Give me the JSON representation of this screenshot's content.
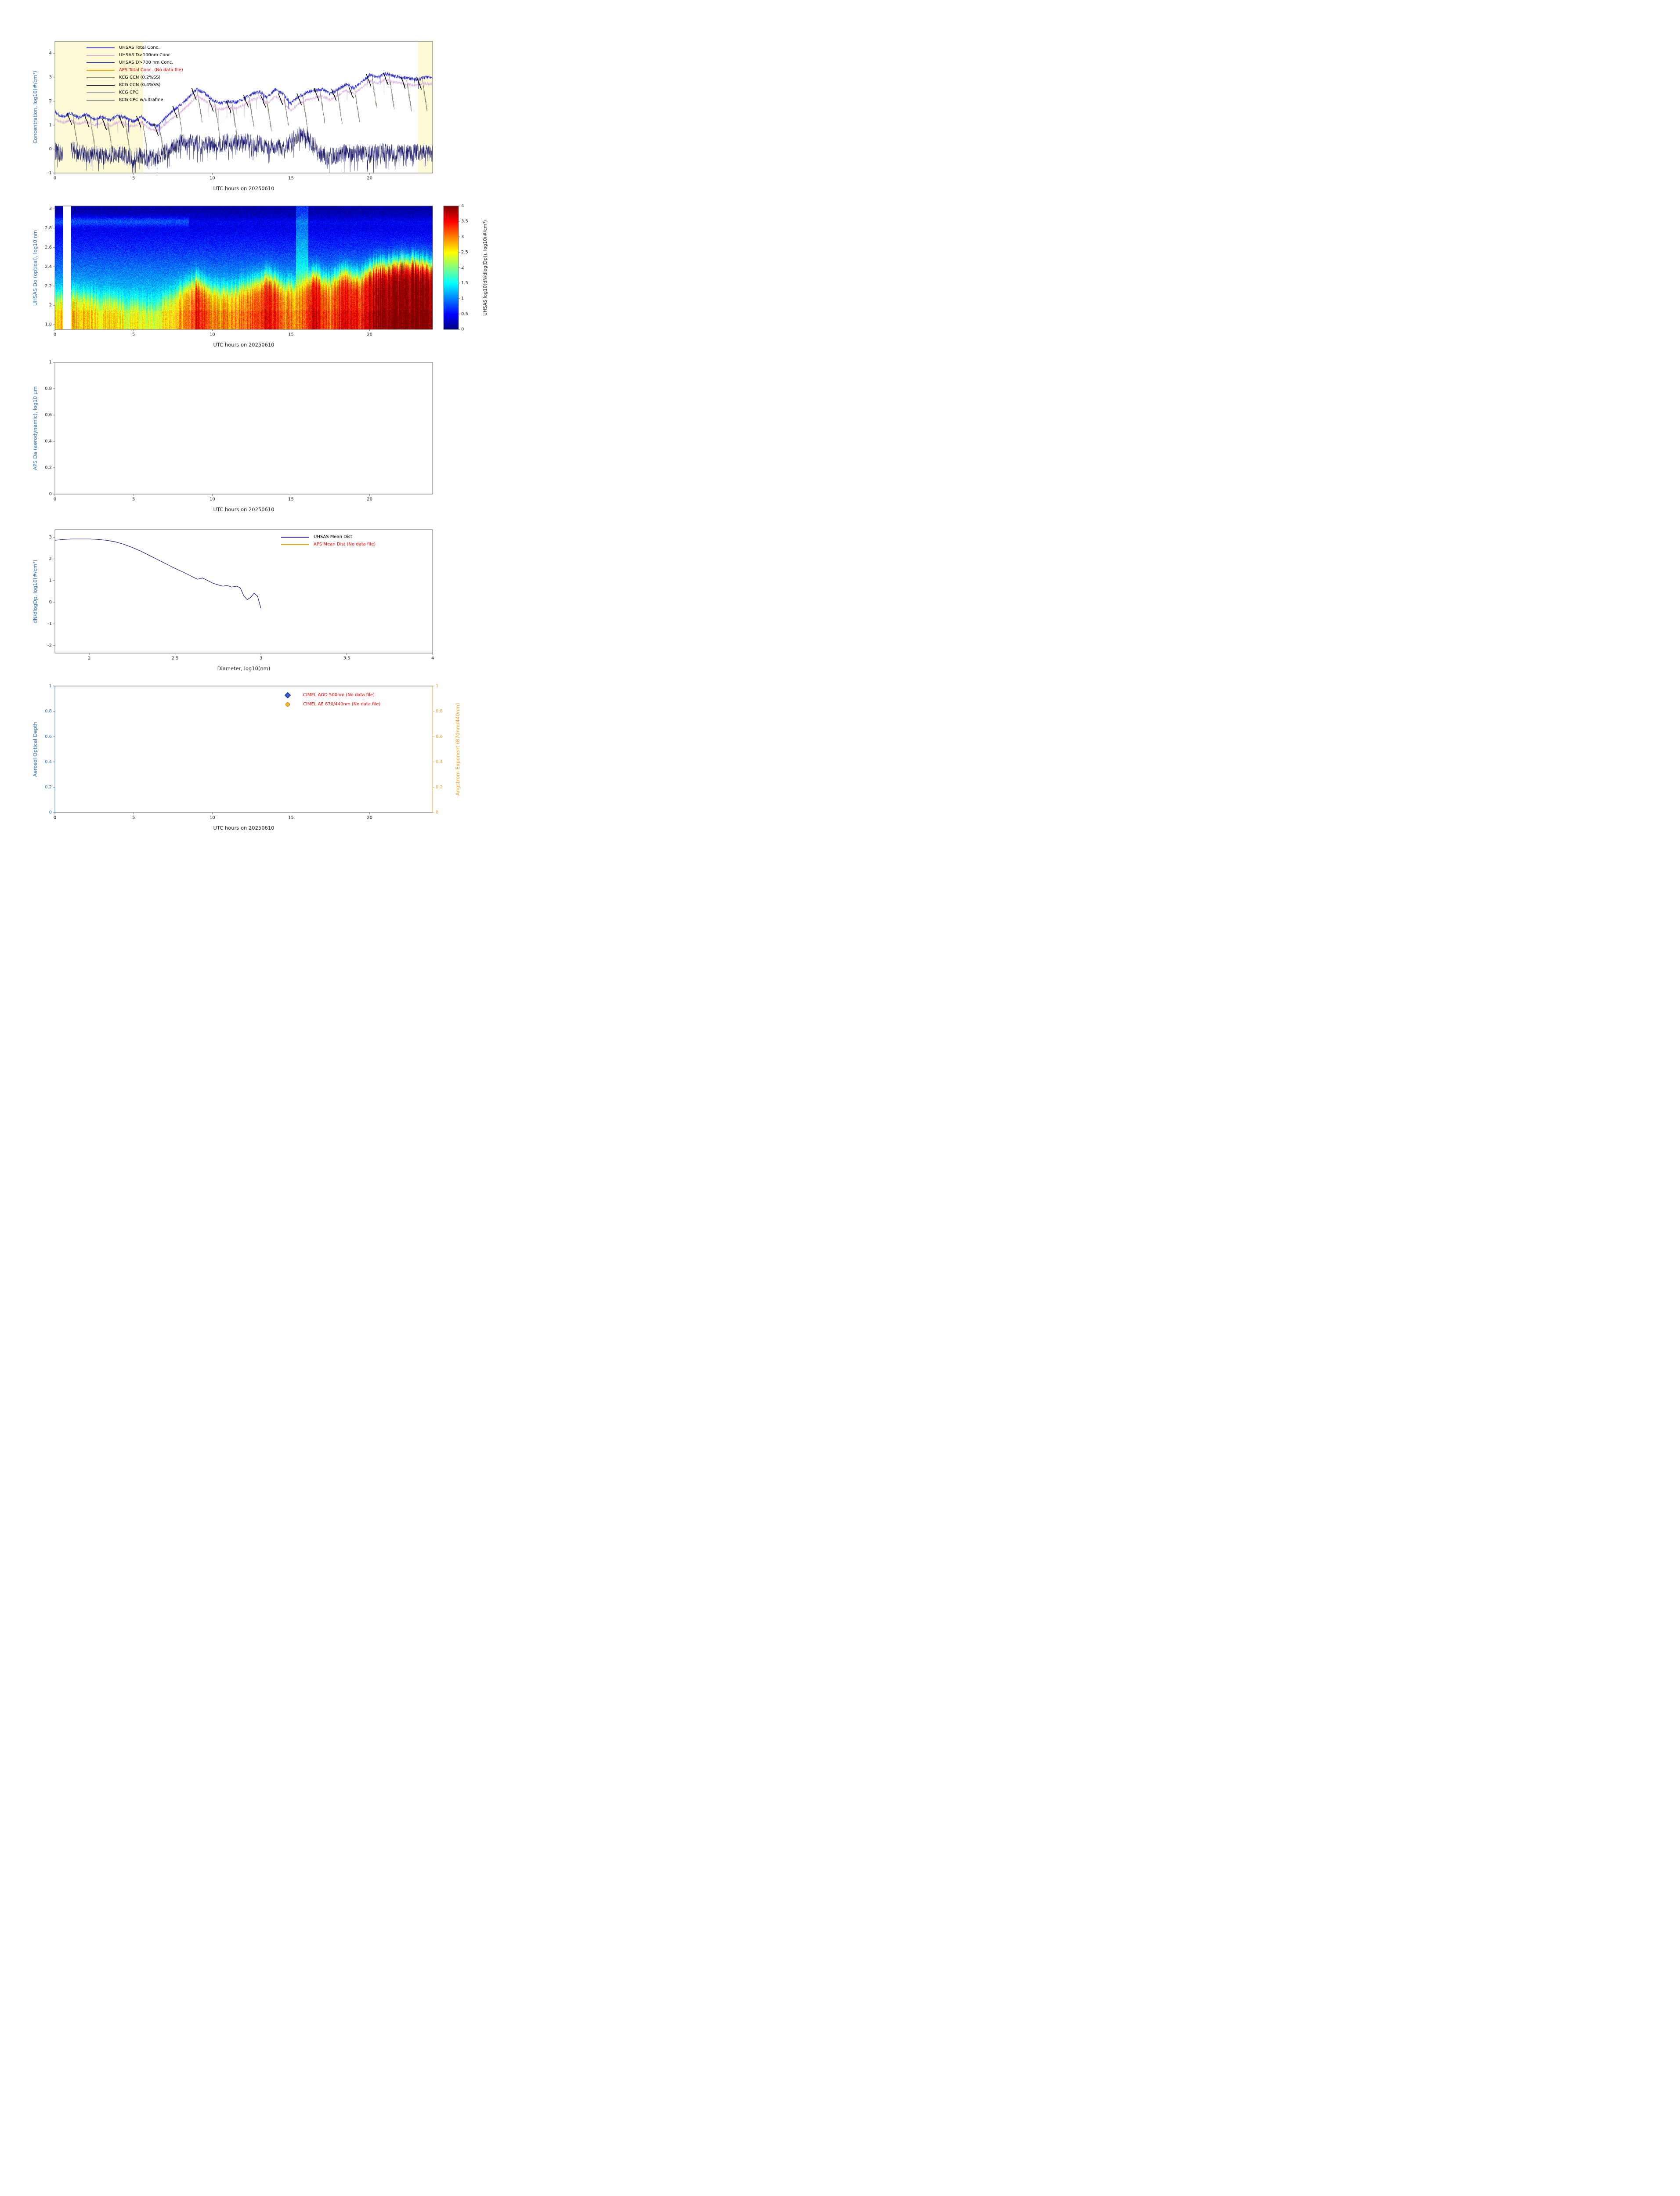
{
  "colors": {
    "axis_blue": "#3273be",
    "axis_orange": "#f0a030",
    "tick_label": "#262626",
    "spine": "#636363",
    "nodata_red": "#ff0000",
    "background": "#ffffff",
    "shade_yellow": "#fcf9d4"
  },
  "chart_data_note": "charts[] below is the chart_data: all series values read from the plotted figure",
  "charts": [
    {
      "id": "concentration_timeseries",
      "type": "line",
      "ylabel": "Concentration, log10(#/cm³)",
      "xlabel": "UTC hours on 20250610",
      "xlim": [
        0,
        24
      ],
      "ylim": [
        -1,
        4.5
      ],
      "xticks": [
        0,
        5,
        10,
        15,
        20
      ],
      "yticks": [
        -1,
        0,
        1,
        2,
        3,
        4
      ],
      "shaded_spans": [
        [
          0,
          5.62
        ],
        [
          23.08,
          24
        ]
      ],
      "legend": [
        {
          "label": "UHSAS Total Conc.",
          "color": "#2424cf",
          "text": "#000000"
        },
        {
          "label": "UHSAS D>100nm Conc.",
          "color": "#ddb3dd",
          "text": "#000000"
        },
        {
          "label": "UHSAS D>700 nm Conc.",
          "color": "#191970",
          "text": "#000000"
        },
        {
          "label": "APS Total Conc. (No data file)",
          "color": "#ffa500",
          "text": "#ff0000"
        },
        {
          "label": "KCG CCN (0.2%SS)",
          "color": "#8b8b7a",
          "text": "#000000"
        },
        {
          "label": "KCG CCN (0.4%SS)",
          "color": "#000000",
          "text": "#000000"
        },
        {
          "label": "KCG CPC",
          "color": "#aab0c0",
          "text": "#000000"
        },
        {
          "label": "KCG CPC w/ultrafine",
          "color": "#6f7585",
          "text": "#000000"
        }
      ],
      "series": [
        {
          "name": "UHSAS Total Conc.",
          "color": "#2424cf",
          "noise": 0.07,
          "x": [
            0,
            0.5,
            1,
            1.5,
            2,
            2.5,
            3,
            3.5,
            4,
            4.5,
            5,
            5.5,
            6,
            6.5,
            7,
            7.5,
            8,
            8.5,
            9,
            9.5,
            10,
            10.5,
            11,
            11.5,
            12,
            12.5,
            13,
            13.5,
            14,
            14.5,
            15,
            15.5,
            16,
            16.5,
            17,
            17.5,
            18,
            18.5,
            19,
            19.5,
            20,
            20.5,
            21,
            21.5,
            22,
            22.5,
            23,
            23.5,
            24
          ],
          "y": [
            1.55,
            1.35,
            1.5,
            1.3,
            1.45,
            1.25,
            1.35,
            1.2,
            1.4,
            1.3,
            1.15,
            1.35,
            1.05,
            0.95,
            1.3,
            1.6,
            1.85,
            2.15,
            2.5,
            2.35,
            2.05,
            1.9,
            2.0,
            1.95,
            2.1,
            2.3,
            2.4,
            2.15,
            2.5,
            2.3,
            1.9,
            2.2,
            2.35,
            2.45,
            2.5,
            2.3,
            2.5,
            2.7,
            2.55,
            2.8,
            3.1,
            3.0,
            3.15,
            3.05,
            3.0,
            2.95,
            2.9,
            3.0,
            3.0
          ]
        },
        {
          "name": "UHSAS D>100nm Conc.",
          "color": "#ddb3dd",
          "noise": 0.06,
          "x": [
            0,
            0.5,
            1,
            1.5,
            2,
            2.5,
            3,
            3.5,
            4,
            4.5,
            5,
            5.5,
            6,
            6.5,
            7,
            7.5,
            8,
            8.5,
            9,
            9.5,
            10,
            10.5,
            11,
            11.5,
            12,
            12.5,
            13,
            13.5,
            14,
            14.5,
            15,
            15.5,
            16,
            16.5,
            17,
            17.5,
            18,
            18.5,
            19,
            19.5,
            20,
            20.5,
            21,
            21.5,
            22,
            22.5,
            23,
            23.5,
            24
          ],
          "y": [
            1.25,
            1.1,
            1.2,
            1.05,
            1.15,
            1.0,
            1.1,
            0.95,
            1.15,
            1.05,
            0.95,
            1.1,
            0.85,
            0.75,
            1.05,
            1.3,
            1.55,
            1.85,
            2.2,
            2.05,
            1.8,
            1.65,
            1.75,
            1.7,
            1.85,
            2.05,
            2.15,
            1.9,
            2.2,
            2.0,
            1.6,
            1.9,
            2.05,
            2.15,
            2.2,
            2.05,
            2.25,
            2.45,
            2.3,
            2.55,
            2.85,
            2.75,
            2.9,
            2.8,
            2.75,
            2.7,
            2.65,
            2.75,
            2.7
          ]
        },
        {
          "name": "UHSAS D>700 nm Conc.",
          "color": "#191970",
          "noise": 0.38,
          "gaps": [
            [
              0.52,
              1.02
            ]
          ],
          "x": [
            0,
            0.5,
            1,
            1.5,
            2,
            2.5,
            3,
            3.5,
            4,
            4.5,
            5,
            5.5,
            6,
            6.5,
            7,
            7.5,
            8,
            8.5,
            9,
            9.5,
            10,
            10.5,
            11,
            11.5,
            12,
            12.5,
            13,
            13.5,
            14,
            14.5,
            15,
            15.5,
            16,
            16.5,
            17,
            17.5,
            18,
            18.5,
            19,
            19.5,
            20,
            20.5,
            21,
            21.5,
            22,
            22.5,
            23,
            23.5,
            24
          ],
          "y": [
            -0.1,
            -0.2,
            0.0,
            -0.1,
            -0.25,
            -0.2,
            -0.3,
            -0.25,
            -0.2,
            -0.3,
            -0.35,
            -0.25,
            -0.4,
            -0.35,
            -0.1,
            0.1,
            0.25,
            0.3,
            0.3,
            0.2,
            0.15,
            0.2,
            0.3,
            0.25,
            0.3,
            0.25,
            0.2,
            0.1,
            0.15,
            0.0,
            0.3,
            0.65,
            0.55,
            0.1,
            -0.25,
            -0.3,
            -0.25,
            -0.15,
            -0.2,
            -0.1,
            -0.2,
            -0.15,
            -0.1,
            -0.2,
            -0.15,
            -0.2,
            -0.1,
            -0.15,
            -0.2
          ]
        }
      ],
      "kcg": {
        "event_times": [
          1.1,
          2.2,
          3.3,
          4.4,
          5.5,
          6.6,
          7.8,
          9.0,
          10.1,
          11.2,
          12.3,
          13.4,
          14.5,
          15.7,
          16.8,
          17.9,
          19.0,
          20.1,
          21.2,
          22.3,
          23.3
        ],
        "ccn02_color": "#8b8b7a",
        "ccn04_color": "#000000",
        "drop_depth": 1.25
      }
    },
    {
      "id": "uhsas_size_dist_heatmap",
      "type": "heatmap",
      "ylabel": "UHSAS Do (optical), log10 nm",
      "xlabel": "UTC hours on 20250610",
      "xlim": [
        0,
        24
      ],
      "ylim": [
        1.75,
        3.03
      ],
      "xticks": [
        0,
        5,
        10,
        15,
        20
      ],
      "yticks": [
        1.8,
        2,
        2.2,
        2.4,
        2.6,
        2.8,
        3
      ],
      "colorbar": {
        "label": "UHSAS log10(dN/dlog(Dp)), log10(#/cm³)",
        "ticks": [
          0,
          0.5,
          1,
          1.5,
          2,
          2.5,
          3,
          3.5,
          4
        ],
        "range": [
          0,
          4
        ],
        "colormap": "jet"
      },
      "gaps": [
        [
          0.52,
          1.02
        ]
      ],
      "columns": {
        "t": [
          0,
          0.5,
          1,
          1.5,
          2,
          2.5,
          3,
          3.5,
          4,
          4.5,
          5,
          5.5,
          6,
          6.5,
          7,
          7.5,
          8,
          8.5,
          9,
          9.5,
          10,
          10.5,
          11,
          11.5,
          12,
          12.5,
          13,
          13.5,
          14,
          14.5,
          15,
          15.5,
          16,
          16.5,
          17,
          17.5,
          18,
          18.5,
          19,
          19.5,
          20,
          20.5,
          21,
          21.5,
          22,
          22.5,
          23,
          23.5,
          24
        ],
        "surface_value": [
          2.6,
          2.6,
          2.7,
          2.65,
          2.6,
          2.55,
          2.5,
          2.5,
          2.45,
          2.4,
          2.4,
          2.35,
          2.3,
          2.3,
          2.5,
          2.6,
          2.7,
          2.9,
          3.4,
          3.2,
          2.9,
          2.85,
          2.9,
          2.9,
          3.0,
          3.0,
          3.1,
          3.5,
          3.3,
          3.0,
          2.9,
          3.0,
          3.2,
          3.6,
          3.2,
          3.0,
          3.3,
          3.5,
          3.5,
          3.3,
          3.6,
          3.8,
          3.9,
          3.9,
          4.0,
          4.0,
          4.0,
          3.95,
          3.9
        ],
        "mix_height": [
          2.08,
          2.08,
          2.1,
          2.1,
          2.08,
          2.06,
          2.05,
          2.05,
          2.03,
          2.0,
          2.02,
          2.0,
          1.98,
          2.0,
          2.06,
          2.1,
          2.14,
          2.2,
          2.26,
          2.2,
          2.16,
          2.14,
          2.15,
          2.16,
          2.2,
          2.2,
          2.24,
          2.3,
          2.26,
          2.2,
          2.2,
          2.22,
          2.26,
          2.32,
          2.26,
          2.24,
          2.3,
          2.34,
          2.3,
          2.3,
          2.36,
          2.4,
          2.4,
          2.42,
          2.44,
          2.45,
          2.44,
          2.42,
          2.4
        ]
      }
    },
    {
      "id": "aps_size_dist",
      "type": "heatmap",
      "empty": true,
      "ylabel": "APS Da (aerodynamic), log10 µm",
      "xlabel": "UTC hours on 20250610",
      "xlim": [
        0,
        24
      ],
      "ylim": [
        0,
        1
      ],
      "xticks": [
        0,
        5,
        10,
        15,
        20
      ],
      "yticks": [
        0,
        0.2,
        0.4,
        0.6,
        0.8,
        1
      ]
    },
    {
      "id": "mean_size_distribution",
      "type": "line",
      "ylabel": "dN/dlogDp, log10(#/cm³)",
      "xlabel": "Diameter, log10(nm)",
      "xlim": [
        1.8,
        4
      ],
      "ylim": [
        -2.35,
        3.35
      ],
      "xticks": [
        2,
        2.5,
        3,
        3.5,
        4
      ],
      "yticks": [
        -2,
        -1,
        0,
        1,
        2,
        3
      ],
      "legend": [
        {
          "label": "UHSAS Mean Dist",
          "color": "#191980",
          "text": "#000000"
        },
        {
          "label": "APS Mean Dist (No data file)",
          "color": "#ffa500",
          "text": "#ff0000"
        }
      ],
      "series": [
        {
          "name": "UHSAS Mean Dist",
          "color": "#191980",
          "x": [
            1.8,
            1.85,
            1.9,
            1.95,
            2.0,
            2.05,
            2.1,
            2.15,
            2.2,
            2.25,
            2.3,
            2.35,
            2.4,
            2.45,
            2.5,
            2.55,
            2.6,
            2.63,
            2.66,
            2.69,
            2.72,
            2.75,
            2.78,
            2.8,
            2.83,
            2.86,
            2.88,
            2.9,
            2.92,
            2.94,
            2.96,
            2.98,
            3.0
          ],
          "y": [
            2.86,
            2.9,
            2.92,
            2.92,
            2.92,
            2.9,
            2.86,
            2.79,
            2.68,
            2.53,
            2.36,
            2.16,
            1.96,
            1.76,
            1.56,
            1.38,
            1.18,
            1.06,
            1.12,
            1.0,
            0.88,
            0.8,
            0.74,
            0.78,
            0.7,
            0.74,
            0.66,
            0.3,
            0.12,
            0.22,
            0.42,
            0.28,
            -0.28
          ]
        }
      ]
    },
    {
      "id": "aod_angstrom",
      "type": "scatter",
      "empty": true,
      "ylabel_left": "Aerosol Optical Depth",
      "ylabel_right": "Angstrom Exponent (870nm/440nm)",
      "xlabel": "UTC hours on 20250610",
      "xlim": [
        0,
        24
      ],
      "ylim_left": [
        0,
        1
      ],
      "ylim_right": [
        0,
        1
      ],
      "xticks": [
        0,
        5,
        10,
        15,
        20
      ],
      "yticks_left": [
        0,
        0.2,
        0.4,
        0.6,
        0.8,
        1
      ],
      "yticks_right": [
        0,
        0.2,
        0.4,
        0.6,
        0.8,
        1
      ],
      "legend": [
        {
          "label": "CIMEL AOD 500nm (No data file)",
          "marker": "diamond",
          "marker_fill": "#3b5bdb",
          "marker_edge": "#101c78",
          "text": "#ff0000"
        },
        {
          "label": "CIMEL AE 870/440nm (No data file)",
          "marker": "circle",
          "marker_fill": "#f7b32b",
          "marker_edge": "#b97e0e",
          "text": "#ff0000"
        }
      ]
    }
  ]
}
